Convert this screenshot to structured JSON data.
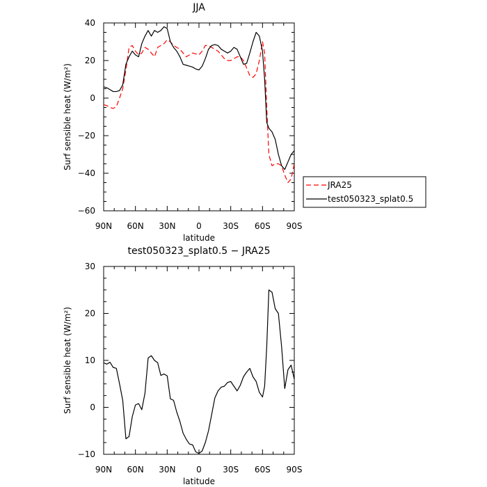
{
  "chart_data": [
    {
      "type": "line",
      "title": "JJA",
      "xlabel": "latitude",
      "ylabel": "Surf sensible heat (W/m²)",
      "xlim": [
        90,
        -90
      ],
      "ylim": [
        -60,
        40
      ],
      "x_ticks": [
        90,
        60,
        30,
        0,
        -30,
        -60,
        -90
      ],
      "x_tick_labels": [
        "90N",
        "60N",
        "30N",
        "0",
        "30S",
        "60S",
        "90S"
      ],
      "y_ticks": [
        -60,
        -40,
        -20,
        0,
        20,
        40
      ],
      "y_tick_labels": [
        "−60",
        "−40",
        "−20",
        "0",
        "20",
        "40"
      ],
      "legend_position": "right",
      "series": [
        {
          "name": "JRA25",
          "color": "#ff0000",
          "dash": "dashed",
          "x": [
            90,
            87,
            84,
            81,
            78,
            75,
            72,
            69,
            66,
            63,
            60,
            57,
            54,
            51,
            48,
            45,
            42,
            39,
            36,
            33,
            30,
            27,
            24,
            21,
            18,
            15,
            12,
            9,
            6,
            3,
            0,
            -3,
            -6,
            -9,
            -12,
            -15,
            -18,
            -21,
            -24,
            -27,
            -30,
            -33,
            -36,
            -39,
            -42,
            -45,
            -48,
            -51,
            -54,
            -57,
            -60,
            -62,
            -64,
            -66,
            -69,
            -72,
            -75,
            -78,
            -81,
            -84,
            -87,
            -90
          ],
          "y": [
            -3.5,
            -4,
            -5,
            -5.5,
            -4.5,
            0,
            5,
            15,
            27,
            28,
            25,
            23,
            24,
            27,
            26,
            24,
            22,
            27,
            28,
            29,
            31,
            30,
            28,
            27,
            26,
            24,
            22,
            23,
            24,
            23.5,
            23,
            25,
            28,
            28,
            27,
            26,
            25,
            23,
            21,
            20,
            20,
            21,
            22,
            22,
            20,
            16,
            12,
            11,
            13,
            20,
            30,
            24,
            -5,
            -30,
            -36,
            -35,
            -35,
            -36,
            -41,
            -45,
            -43,
            -35
          ]
        },
        {
          "name": "test050323_splat0.5",
          "color": "#000000",
          "dash": "solid",
          "x": [
            90,
            87,
            84,
            81,
            78,
            75,
            72,
            69,
            66,
            63,
            60,
            57,
            54,
            51,
            48,
            45,
            42,
            39,
            36,
            33,
            30,
            27,
            24,
            21,
            18,
            15,
            12,
            9,
            6,
            3,
            0,
            -3,
            -6,
            -9,
            -12,
            -15,
            -18,
            -21,
            -24,
            -27,
            -30,
            -33,
            -36,
            -39,
            -42,
            -45,
            -48,
            -51,
            -54,
            -57,
            -60,
            -62,
            -64,
            -66,
            -69,
            -72,
            -75,
            -78,
            -81,
            -84,
            -87,
            -90
          ],
          "y": [
            6,
            5.5,
            4.5,
            3.5,
            3.5,
            4,
            7,
            18,
            22,
            25,
            23,
            22,
            29,
            33,
            36,
            33,
            36,
            35,
            36,
            38,
            37,
            30,
            27,
            25,
            22,
            18,
            17.5,
            17,
            16.5,
            15.5,
            15,
            17,
            21,
            26,
            28,
            28.5,
            28,
            26,
            25,
            24,
            25,
            27,
            26,
            22,
            18,
            18.5,
            24,
            30,
            35,
            33,
            25,
            10,
            -13,
            -16,
            -18,
            -22,
            -30,
            -36,
            -38,
            -34,
            -30,
            -28
          ]
        }
      ]
    },
    {
      "type": "line",
      "title": "test050323_splat0.5 − JRA25",
      "xlabel": "latitude",
      "ylabel": "Surf sensible heat (W/m²)",
      "xlim": [
        90,
        -90
      ],
      "ylim": [
        -10,
        30
      ],
      "x_ticks": [
        90,
        60,
        30,
        0,
        -30,
        -60,
        -90
      ],
      "x_tick_labels": [
        "90N",
        "60N",
        "30N",
        "0",
        "30S",
        "60S",
        "90S"
      ],
      "y_ticks": [
        -10,
        0,
        10,
        20,
        30
      ],
      "y_tick_labels": [
        "−10",
        "0",
        "10",
        "20",
        "30"
      ],
      "series": [
        {
          "color": "#000000",
          "dash": "solid",
          "x": [
            90,
            87,
            84,
            81,
            78,
            75,
            72,
            69,
            66,
            63,
            60,
            57,
            54,
            51,
            48,
            45,
            42,
            39,
            36,
            33,
            30,
            27,
            24,
            21,
            18,
            15,
            12,
            9,
            6,
            3,
            0,
            -3,
            -6,
            -9,
            -12,
            -15,
            -18,
            -21,
            -24,
            -27,
            -30,
            -33,
            -36,
            -39,
            -42,
            -45,
            -48,
            -51,
            -54,
            -57,
            -60,
            -62,
            -64,
            -66,
            -69,
            -72,
            -75,
            -78,
            -81,
            -84,
            -87,
            -90
          ],
          "y": [
            9.5,
            9.2,
            9.6,
            8.5,
            8.3,
            5,
            1.5,
            -6.7,
            -6.2,
            -2,
            0.5,
            0.8,
            -0.5,
            3,
            10.5,
            11,
            10,
            9.5,
            6.8,
            7.1,
            6.7,
            1.8,
            1.5,
            -1,
            -3,
            -5.5,
            -6.8,
            -7.8,
            -8,
            -9.5,
            -9.8,
            -9.3,
            -7.5,
            -5,
            -1.5,
            2,
            3.5,
            4.3,
            4.5,
            5.3,
            5.5,
            4.5,
            3.5,
            4.7,
            6.5,
            7.5,
            8.3,
            6.5,
            5.5,
            3.2,
            2.2,
            4.5,
            13,
            25,
            24.5,
            21,
            20,
            13,
            4,
            8,
            9,
            6
          ]
        }
      ]
    }
  ]
}
